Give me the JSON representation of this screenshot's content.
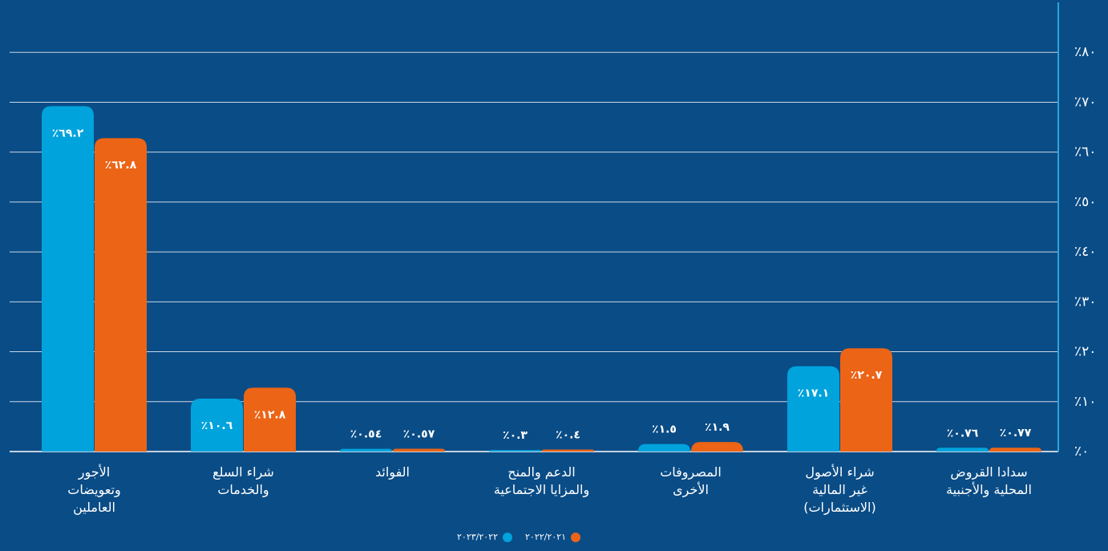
{
  "chart_data": {
    "type": "bar",
    "categories": [
      "الأجور\nوتعويضات\nالعاملين",
      "شراء السلع\nوالخدمات",
      "الفوائد",
      "الدعم والمنح\nوالمزايا الاجتماعية",
      "المصروفات\nالأخرى",
      "شراء الأصول\nغير المالية\n(الاستثمارات)",
      "سدادا القروض\nالمحلية والأجنبية"
    ],
    "series": [
      {
        "name": "٢٠٢٣/٢٠٢٢",
        "color": "#00a3dc",
        "values": [
          69.2,
          10.6,
          0.54,
          0.3,
          1.5,
          17.1,
          0.76
        ],
        "value_labels": [
          "٪٦٩.٢",
          "٪١٠.٦",
          "٪٠.٥٤",
          "٪٠.٣",
          "٪١.٥",
          "٪١٧.١",
          "٪٠.٧٦"
        ]
      },
      {
        "name": "٢٠٢٢/٢٠٢١",
        "color": "#ec6416",
        "values": [
          62.8,
          12.8,
          0.57,
          0.4,
          1.9,
          20.7,
          0.77
        ],
        "value_labels": [
          "٪٦٢.٨",
          "٪١٢.٨",
          "٪٠.٥٧",
          "٪٠.٤",
          "٪١.٩",
          "٪٢٠.٧",
          "٪٠.٧٧"
        ]
      }
    ],
    "ylim": [
      0,
      90
    ],
    "yticks": [
      {
        "value": 0,
        "label": "٪٠"
      },
      {
        "value": 10,
        "label": "٪١٠"
      },
      {
        "value": 20,
        "label": "٪٢٠"
      },
      {
        "value": 30,
        "label": "٪٣٠"
      },
      {
        "value": 40,
        "label": "٪٤٠"
      },
      {
        "value": 50,
        "label": "٪٥٠"
      },
      {
        "value": 60,
        "label": "٪٦٠"
      },
      {
        "value": 70,
        "label": "٪٧٠"
      },
      {
        "value": 80,
        "label": "٪٨٠"
      }
    ],
    "grid": true,
    "legend": "bottom"
  }
}
